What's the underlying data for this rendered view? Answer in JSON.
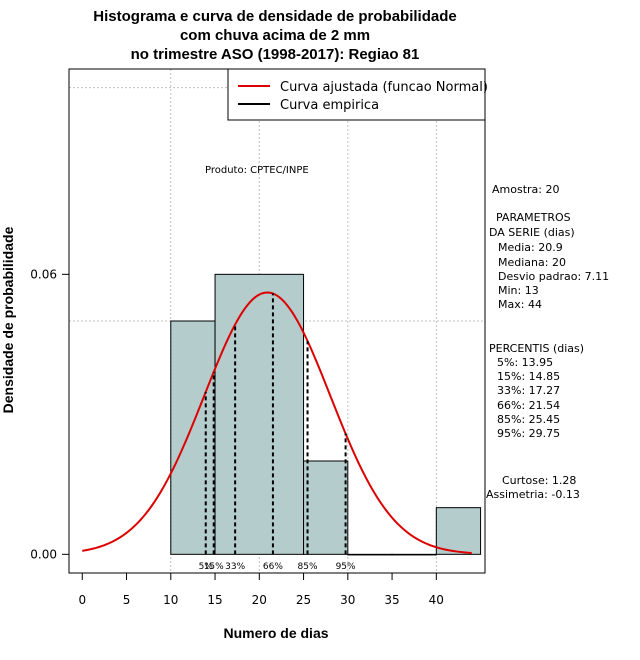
{
  "chart_data": {
    "type": "bar",
    "title_lines": [
      "Histograma e curva de densidade de probabilidade",
      "com chuva acima de 2 mm",
      "no trimestre ASO (1998-2017): Regiao 81"
    ],
    "xlabel": "Numero de dias",
    "ylabel": "Densidade de probabilidade",
    "xlim": [
      -1.5,
      45.5
    ],
    "ylim": [
      -0.004,
      0.104
    ],
    "x_ticks": [
      0,
      5,
      10,
      15,
      20,
      25,
      30,
      35,
      40
    ],
    "x_tick_labels": [
      "0",
      "5",
      "10",
      "15",
      "20",
      "25",
      "30",
      "35",
      "40"
    ],
    "y_ticks": [
      0.0,
      0.06
    ],
    "y_tick_labels": [
      "0.00",
      "0.06"
    ],
    "grid_x": [
      10,
      20,
      30,
      40
    ],
    "grid_y": [
      0.05,
      0.1
    ],
    "bars": [
      {
        "x0": 10,
        "x1": 15,
        "value": 0.05
      },
      {
        "x0": 15,
        "x1": 25,
        "value": 0.06
      },
      {
        "x0": 25,
        "x1": 30,
        "value": 0.02
      },
      {
        "x0": 30,
        "x1": 35,
        "value": 0.0
      },
      {
        "x0": 35,
        "x1": 40,
        "value": 0.0
      },
      {
        "x0": 40,
        "x1": 45,
        "value": 0.01
      }
    ],
    "normal_curve": {
      "mean": 20.9,
      "sd": 7.11,
      "x_range": [
        0,
        44
      ],
      "color": "#dd0000"
    },
    "percentile_lines": [
      {
        "label": "5%",
        "value": 13.95
      },
      {
        "label": "15%",
        "value": 14.85
      },
      {
        "label": "33%",
        "value": 17.27
      },
      {
        "label": "66%",
        "value": 21.54
      },
      {
        "label": "85%",
        "value": 25.45
      },
      {
        "label": "95%",
        "value": 29.75
      }
    ],
    "legend": {
      "position": "top-right",
      "entries": [
        {
          "label": "Curva ajustada (funcao Normal)",
          "color": "#dd0000"
        },
        {
          "label": "Curva empirica",
          "color": "#000000"
        }
      ]
    },
    "annotation": "Produto: CPTEC/INPE",
    "bar_color": "#b4cccc"
  },
  "side_panel": {
    "sample": "Amostra: 20",
    "params_title": [
      "PARAMETROS",
      "DA SERIE (dias)"
    ],
    "params": [
      "Media: 20.9",
      "Mediana: 20",
      "Desvio padrao: 7.11",
      "Min: 13",
      "Max: 44"
    ],
    "percentis_title": "PERCENTIS (dias)",
    "percentis": [
      "5%: 13.95",
      "15%: 14.85",
      "33%: 17.27",
      "66%: 21.54",
      "85%: 25.45",
      "95%: 29.75"
    ],
    "curtose": "Curtose: 1.28",
    "assimetria": "Assimetria: -0.13"
  }
}
